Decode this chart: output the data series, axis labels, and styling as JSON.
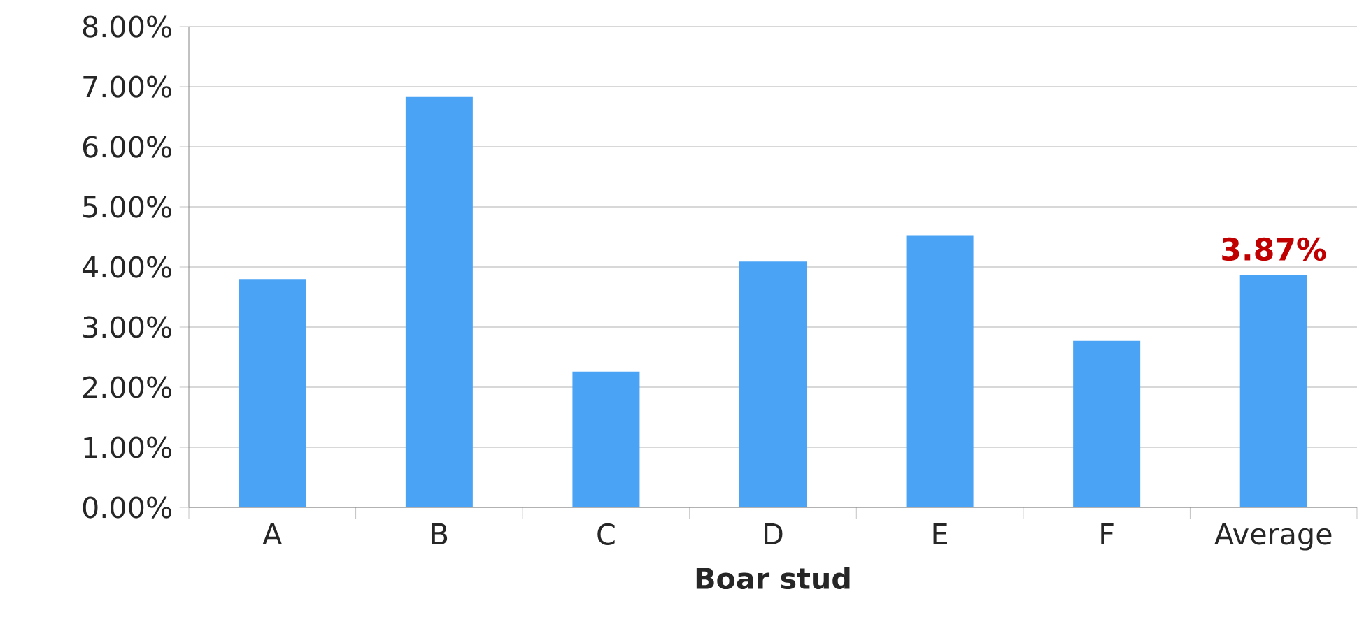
{
  "chart_data": {
    "type": "bar",
    "xlabel": "Boar stud",
    "categories": [
      "A",
      "B",
      "C",
      "D",
      "E",
      "F",
      "Average"
    ],
    "values": [
      3.8,
      6.83,
      2.26,
      4.09,
      4.53,
      2.77,
      3.87
    ],
    "value_labels": [
      null,
      null,
      null,
      null,
      null,
      null,
      "3.87%"
    ],
    "color": "#4aa3f5",
    "ylim": [
      0,
      8
    ],
    "yticks": [
      {
        "value": 0,
        "label": "0.00%"
      },
      {
        "value": 1,
        "label": "1.00%"
      },
      {
        "value": 2,
        "label": "2.00%"
      },
      {
        "value": 3,
        "label": "3.00%"
      },
      {
        "value": 4,
        "label": "4.00%"
      },
      {
        "value": 5,
        "label": "5.00%"
      },
      {
        "value": 6,
        "label": "6.00%"
      },
      {
        "value": 7,
        "label": "7.00%"
      },
      {
        "value": 8,
        "label": "8.00%"
      }
    ],
    "grid": "y"
  }
}
